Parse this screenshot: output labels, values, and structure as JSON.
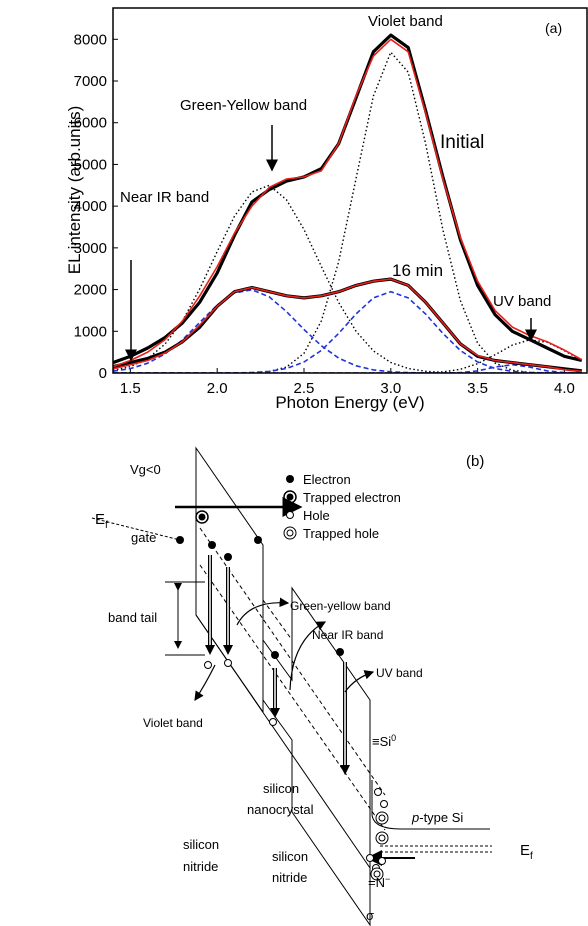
{
  "chart_data": {
    "type": "line",
    "panel_label": "(a)",
    "x_label": "Photon Energy (eV)",
    "y_label": "EL intensity (arb.units)",
    "x": [
      1.4,
      1.5,
      1.6,
      1.7,
      1.8,
      1.9,
      2.0,
      2.1,
      2.2,
      2.3,
      2.4,
      2.5,
      2.6,
      2.7,
      2.8,
      2.9,
      3.0,
      3.1,
      3.2,
      3.3,
      3.4,
      3.5,
      3.6,
      3.7,
      3.8,
      3.9,
      4.0,
      4.1
    ],
    "xlim": [
      1.4,
      4.13
    ],
    "ylim": [
      0,
      8750
    ],
    "xticks": [
      1.5,
      {
        "value": 2,
        "label": "2.0"
      },
      2.5,
      {
        "value": 3,
        "label": "3.0"
      },
      3.5,
      {
        "value": 4,
        "label": "4.0"
      }
    ],
    "yticks": [
      0,
      1000,
      2000,
      3000,
      4000,
      5000,
      6000,
      7000,
      8000
    ],
    "series": [
      {
        "color": "#000000",
        "style": "thick",
        "values": [
          250,
          400,
          600,
          850,
          1200,
          1700,
          2400,
          3300,
          4100,
          4400,
          4600,
          4700,
          4900,
          5500,
          6600,
          7700,
          8100,
          7800,
          6300,
          4700,
          3200,
          2100,
          1400,
          1000,
          800,
          600,
          400,
          300
        ]
      },
      {
        "color": "#e8201a",
        "style": "solid",
        "values": [
          150,
          300,
          500,
          800,
          1250,
          1850,
          2550,
          3350,
          4000,
          4450,
          4650,
          4700,
          4850,
          5500,
          6650,
          7600,
          8000,
          7700,
          6250,
          4650,
          3250,
          2200,
          1500,
          1100,
          900,
          750,
          550,
          320
        ]
      },
      {
        "color": "#000000",
        "style": "thick",
        "values": [
          150,
          250,
          350,
          500,
          750,
          1100,
          1600,
          1950,
          2050,
          1950,
          1850,
          1800,
          1850,
          1950,
          2100,
          2200,
          2250,
          2100,
          1700,
          1200,
          700,
          400,
          300,
          250,
          200,
          150,
          100,
          50
        ]
      },
      {
        "color": "#e8201a",
        "style": "solid",
        "values": [
          100,
          200,
          300,
          480,
          750,
          1150,
          1600,
          1950,
          2050,
          1950,
          1850,
          1800,
          1850,
          1950,
          2100,
          2200,
          2250,
          2100,
          1700,
          1200,
          700,
          420,
          300,
          250,
          200,
          150,
          80,
          40
        ]
      },
      {
        "color": "#000000",
        "style": "dotted",
        "values": [
          61,
          153,
          345,
          695,
          1250,
          2020,
          2910,
          3760,
          4340,
          4500,
          4150,
          3440,
          2550,
          1690,
          1000,
          530,
          252,
          107,
          41,
          14,
          4,
          1,
          0,
          0,
          0,
          0,
          0,
          0
        ]
      },
      {
        "color": "#000000",
        "style": "dotted",
        "values": [
          0,
          0,
          0,
          0,
          0,
          0,
          0,
          0,
          8,
          36,
          145,
          472,
          1250,
          2670,
          4670,
          6640,
          7690,
          7210,
          5510,
          3430,
          1740,
          715,
          240,
          65,
          15,
          3,
          0,
          0
        ]
      },
      {
        "color": "#000000",
        "style": "dotted",
        "values": [
          0,
          0,
          0,
          0,
          0,
          0,
          0,
          0,
          0,
          0,
          0,
          0,
          0,
          0,
          0,
          0,
          0,
          1,
          7,
          27,
          89,
          222,
          437,
          668,
          796,
          738,
          534,
          300
        ]
      },
      {
        "color": "#2233dd",
        "style": "dashed",
        "values": [
          42,
          106,
          235,
          460,
          797,
          1213,
          1627,
          1920,
          1995,
          1824,
          1469,
          1042,
          652,
          358,
          173,
          74,
          28,
          10,
          3,
          0,
          0,
          0,
          0,
          0,
          0,
          0,
          0,
          0
        ]
      },
      {
        "color": "#2233dd",
        "style": "dashed",
        "values": [
          0,
          0,
          0,
          0,
          0,
          0,
          0,
          3,
          12,
          39,
          109,
          264,
          542,
          949,
          1416,
          1800,
          1950,
          1800,
          1416,
          949,
          542,
          264,
          109,
          39,
          12,
          3,
          0,
          0
        ]
      },
      {
        "color": "#2233dd",
        "style": "dashed",
        "values": [
          0,
          0,
          0,
          0,
          0,
          0,
          0,
          0,
          0,
          0,
          0,
          0,
          0,
          0,
          0,
          0,
          0,
          0,
          0,
          0,
          9,
          50,
          141,
          200,
          141,
          50,
          9,
          0
        ]
      }
    ],
    "annotations": [
      "Violet band",
      "Green-Yellow band",
      "Initial",
      "Near IR band",
      "16 min",
      "UV band"
    ]
  },
  "diagram": {
    "panel_label": "(b)",
    "legend": [
      "Electron",
      "Trapped electron",
      "Hole",
      "Trapped hole"
    ],
    "labels": {
      "vg": "Vg<0",
      "gate": "gate",
      "band_tail": "band tail",
      "green_yellow": "Green-yellow band",
      "near_ir": "Near IR band",
      "violet": "Violet band",
      "uv": "UV band",
      "sigma": "σ"
    },
    "ef_left": [
      "E",
      "f"
    ],
    "ef_right": [
      "E",
      "f"
    ],
    "si0": [
      "≡Si",
      "0"
    ],
    "n_minus": [
      "=N",
      "−"
    ],
    "p_type": [
      "p",
      "-type Si"
    ],
    "nanocrystal": [
      "silicon",
      "nanocrystal"
    ],
    "nitride_left": [
      "silicon",
      "nitride"
    ],
    "nitride_right": [
      "silicon",
      "nitride"
    ]
  }
}
